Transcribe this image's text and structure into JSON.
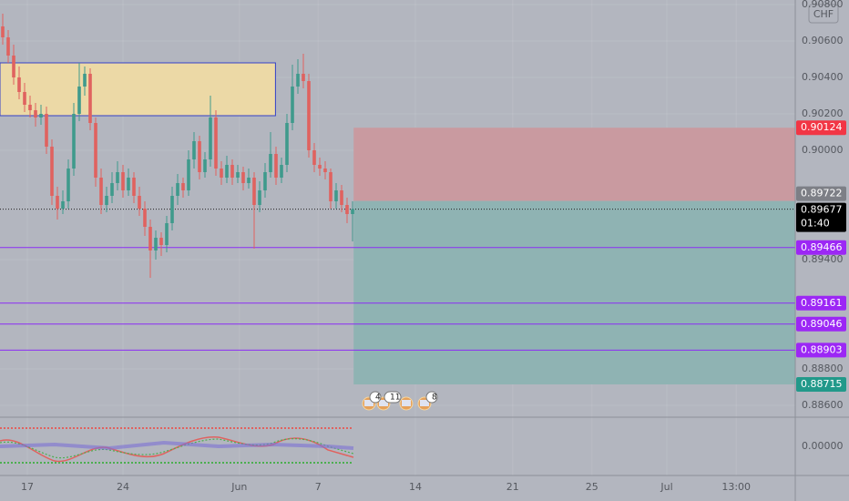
{
  "chart_data": {
    "type": "candlestick",
    "currency": "CHF",
    "up_color": "#3f9a8c",
    "down_color": "#e0625f",
    "open": [
      0.9068,
      0.9062,
      0.9052,
      0.904,
      0.9032,
      0.9025,
      0.9022,
      0.9018,
      0.902,
      0.9002,
      0.8975,
      0.8968,
      0.8972,
      0.899,
      0.902,
      0.9035,
      0.9042,
      0.9015,
      0.8985,
      0.897,
      0.8975,
      0.8982,
      0.8988,
      0.8978,
      0.8985,
      0.8975,
      0.8968,
      0.8958,
      0.8945,
      0.8952,
      0.8948,
      0.896,
      0.8975,
      0.8982,
      0.8978,
      0.8995,
      0.9005,
      0.8988,
      0.8995,
      0.9018,
      0.899,
      0.8985,
      0.8992,
      0.8985,
      0.8988,
      0.8982,
      0.8985,
      0.897,
      0.8978,
      0.8988,
      0.8998,
      0.8985,
      0.8992,
      0.9015,
      0.9035,
      0.9042,
      0.9038,
      0.9,
      0.8992,
      0.899,
      0.8988,
      0.8972,
      0.8978,
      0.897,
      0.8965
    ],
    "high": [
      0.9075,
      0.9066,
      0.9058,
      0.9046,
      0.9037,
      0.903,
      0.9026,
      0.9025,
      0.9024,
      0.9006,
      0.898,
      0.8978,
      0.8995,
      0.9026,
      0.9048,
      0.9046,
      0.9045,
      0.9018,
      0.899,
      0.898,
      0.8988,
      0.8994,
      0.8992,
      0.899,
      0.8988,
      0.898,
      0.8972,
      0.8962,
      0.8956,
      0.8955,
      0.8964,
      0.898,
      0.8987,
      0.8985,
      0.9,
      0.901,
      0.9008,
      0.8999,
      0.903,
      0.9022,
      0.8994,
      0.8997,
      0.8995,
      0.8992,
      0.8991,
      0.899,
      0.8988,
      0.8983,
      0.8993,
      0.901,
      0.9002,
      0.8996,
      0.902,
      0.9047,
      0.905,
      0.9053,
      0.9042,
      0.9004,
      0.8996,
      0.8994,
      0.899,
      0.8982,
      0.8981,
      0.8974,
      0.8972
    ],
    "low": [
      0.9058,
      0.9048,
      0.9036,
      0.9028,
      0.9021,
      0.9018,
      0.9013,
      0.9014,
      0.8998,
      0.897,
      0.8962,
      0.8965,
      0.8968,
      0.8986,
      0.9016,
      0.903,
      0.9011,
      0.898,
      0.8965,
      0.8966,
      0.8971,
      0.8978,
      0.8974,
      0.8975,
      0.8971,
      0.8964,
      0.8953,
      0.893,
      0.894,
      0.8942,
      0.8944,
      0.8956,
      0.897,
      0.8974,
      0.8975,
      0.899,
      0.8984,
      0.8985,
      0.8991,
      0.8986,
      0.8981,
      0.8982,
      0.8981,
      0.8982,
      0.8978,
      0.8979,
      0.8946,
      0.8966,
      0.8974,
      0.8985,
      0.8981,
      0.8982,
      0.8988,
      0.9011,
      0.9031,
      0.9034,
      0.8996,
      0.8988,
      0.8986,
      0.8984,
      0.8968,
      0.8968,
      0.8966,
      0.896,
      0.895
    ],
    "close": [
      0.9062,
      0.9052,
      0.904,
      0.9032,
      0.9025,
      0.9022,
      0.9018,
      0.902,
      0.9002,
      0.8975,
      0.8968,
      0.8972,
      0.899,
      0.902,
      0.9035,
      0.9042,
      0.9015,
      0.8985,
      0.897,
      0.8975,
      0.8982,
      0.8988,
      0.8978,
      0.8985,
      0.8975,
      0.8968,
      0.8958,
      0.8945,
      0.8952,
      0.8948,
      0.896,
      0.8975,
      0.8982,
      0.8978,
      0.8995,
      0.9005,
      0.8988,
      0.8995,
      0.9018,
      0.899,
      0.8985,
      0.8992,
      0.8985,
      0.8988,
      0.8982,
      0.8985,
      0.897,
      0.8978,
      0.8988,
      0.8998,
      0.8985,
      0.8992,
      0.9015,
      0.9035,
      0.9042,
      0.9038,
      0.9,
      0.8992,
      0.899,
      0.8988,
      0.8972,
      0.8978,
      0.897,
      0.8965,
      0.89677
    ],
    "xlim": [
      -0.5,
      145
    ],
    "ylim": [
      0.88535,
      0.90825
    ],
    "xticks": [
      {
        "value": 4.5,
        "label": "17"
      },
      {
        "value": 22,
        "label": "24"
      },
      {
        "value": 43.3,
        "label": "Jun"
      },
      {
        "value": 57.7,
        "label": "7"
      },
      {
        "value": 75.5,
        "label": "14"
      },
      {
        "value": 93.3,
        "label": "21"
      },
      {
        "value": 107.8,
        "label": "25"
      },
      {
        "value": 121.5,
        "label": "Jul"
      },
      {
        "value": 134.2,
        "label": "13:00"
      }
    ],
    "yticks": [
      {
        "value": 0.908,
        "label": "0.90800"
      },
      {
        "value": 0.906,
        "label": "0.90600"
      },
      {
        "value": 0.904,
        "label": "0.90400"
      },
      {
        "value": 0.902,
        "label": "0.90200"
      },
      {
        "value": 0.9,
        "label": "0.90000"
      },
      {
        "value": 0.894,
        "label": "0.89400"
      },
      {
        "value": 0.888,
        "label": "0.88800"
      },
      {
        "value": 0.886,
        "label": "0.88600"
      }
    ],
    "oscillator_yticks": [
      {
        "value": 0,
        "label": "0.00000"
      }
    ],
    "zone": {
      "top": 0.9048,
      "bottom": 0.9019,
      "x_end": 49.9,
      "color": "#ecd9a6"
    },
    "levels": [
      0.89466,
      0.89161,
      0.89046,
      0.88903
    ],
    "level_color": "#8b2cf5",
    "position": {
      "x_start": 64.2,
      "stop": 0.90124,
      "entry": 0.89722,
      "target": 0.88715,
      "stop_color": "#c99aa0",
      "target_color": "#8fb3b3"
    },
    "current_price": 0.89677,
    "countdown": "01:40",
    "price_labels": [
      {
        "value": 0.90124,
        "color": "#f23645"
      },
      {
        "value": 0.89722,
        "color": "#7d7f86"
      },
      {
        "value": 0.89677,
        "color": "#000000"
      },
      {
        "value": 0.89466,
        "color": "#9c27f5"
      },
      {
        "value": 0.89161,
        "color": "#9c27f5"
      },
      {
        "value": 0.89046,
        "color": "#9c27f5"
      },
      {
        "value": 0.88903,
        "color": "#9c27f5"
      },
      {
        "value": 0.88715,
        "color": "#22998a"
      }
    ],
    "event_badges": [
      "4",
      "11",
      "8"
    ]
  }
}
